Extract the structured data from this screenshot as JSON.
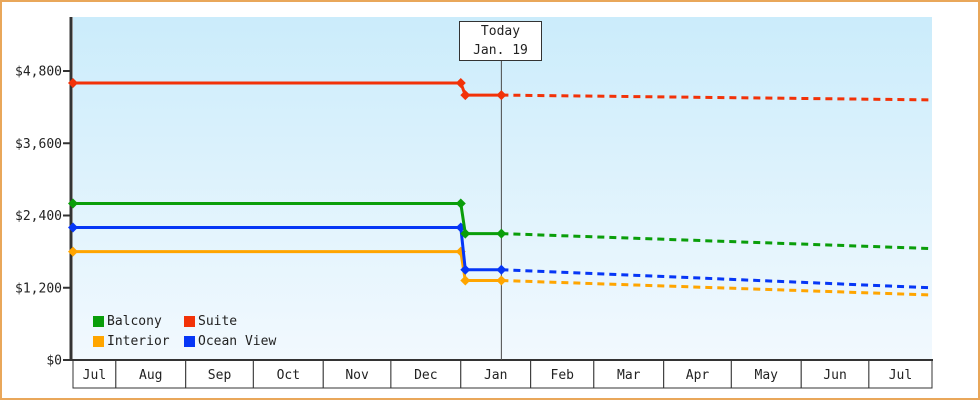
{
  "colors": {
    "frame_border": "#e9a75a",
    "axis": "#333333",
    "text": "#222222",
    "plot_bg_top": "#cbecfb",
    "plot_bg_bottom": "#f2f9fe",
    "month_cell_bg": "#ffffff",
    "today_line": "#4a4a4a",
    "today_box_bg": "#ffffff"
  },
  "legend": {
    "items": [
      {
        "label": "Balcony",
        "color": "#0a9e0a"
      },
      {
        "label": "Suite",
        "color": "#f23208"
      },
      {
        "label": "Interior",
        "color": "#ffa500"
      },
      {
        "label": "Ocean View",
        "color": "#0636f6"
      }
    ]
  },
  "chart_data": {
    "type": "line",
    "title": "",
    "xlabel": "",
    "ylabel": "",
    "grid": false,
    "legend_position": "inside-bottom-left",
    "x_unit": "days_since_jul_1",
    "x_range_days": [
      12,
      393
    ],
    "x_axis_months": [
      "Jul",
      "Aug",
      "Sep",
      "Oct",
      "Nov",
      "Dec",
      "Jan",
      "Feb",
      "Mar",
      "Apr",
      "May",
      "Jun",
      "Jul"
    ],
    "month_boundaries_days": [
      12,
      31,
      62,
      92,
      123,
      153,
      184,
      215,
      243,
      274,
      304,
      335,
      365,
      393
    ],
    "ylim": [
      0,
      5700
    ],
    "y_ticks": [
      {
        "value": 0,
        "label": "$0"
      },
      {
        "value": 1200,
        "label": "$1,200"
      },
      {
        "value": 2400,
        "label": "$2,400"
      },
      {
        "value": 3600,
        "label": "$3,600"
      },
      {
        "value": 4800,
        "label": "$4,800"
      }
    ],
    "today": {
      "x_day": 202,
      "line1": "Today",
      "line2": "Jan. 19"
    },
    "series": [
      {
        "name": "Balcony",
        "color": "#0a9e0a",
        "solid_points_day_value": [
          [
            12,
            2600
          ],
          [
            184,
            2600
          ],
          [
            186,
            2100
          ],
          [
            202,
            2100
          ]
        ],
        "forecast_dashed_points_day_value": [
          [
            202,
            2100
          ],
          [
            393,
            1850
          ]
        ]
      },
      {
        "name": "Suite",
        "color": "#f23208",
        "solid_points_day_value": [
          [
            12,
            4600
          ],
          [
            184,
            4600
          ],
          [
            186,
            4400
          ],
          [
            202,
            4400
          ]
        ],
        "forecast_dashed_points_day_value": [
          [
            202,
            4400
          ],
          [
            393,
            4320
          ]
        ]
      },
      {
        "name": "Interior",
        "color": "#ffa500",
        "solid_points_day_value": [
          [
            12,
            1800
          ],
          [
            184,
            1800
          ],
          [
            186,
            1320
          ],
          [
            202,
            1320
          ]
        ],
        "forecast_dashed_points_day_value": [
          [
            202,
            1320
          ],
          [
            393,
            1080
          ]
        ]
      },
      {
        "name": "Ocean View",
        "color": "#0636f6",
        "solid_points_day_value": [
          [
            12,
            2200
          ],
          [
            184,
            2200
          ],
          [
            186,
            1500
          ],
          [
            202,
            1500
          ]
        ],
        "forecast_dashed_points_day_value": [
          [
            202,
            1500
          ],
          [
            393,
            1200
          ]
        ]
      }
    ]
  }
}
